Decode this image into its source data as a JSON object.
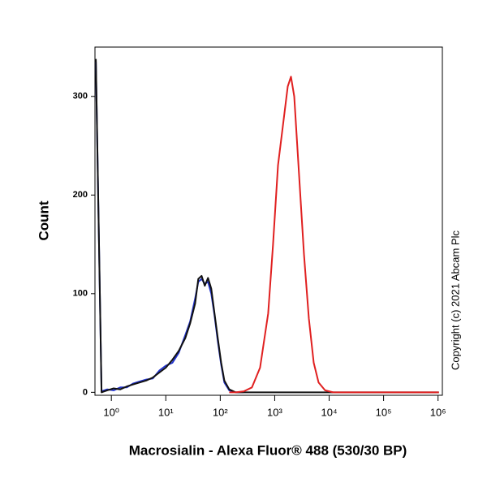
{
  "chart_data": {
    "type": "line",
    "xlabel": "Macrosialin - Alexa Fluor® 488 (530/30 BP)",
    "ylabel": "Count",
    "annotation": "Copyright (c) 2021 Abcam Plc",
    "xscale": "log",
    "xlim": [
      0.5,
      1200000
    ],
    "ylim": [
      -3,
      350
    ],
    "xticks": [
      {
        "value": 1,
        "label": "10⁰"
      },
      {
        "value": 10,
        "label": "10¹"
      },
      {
        "value": 100,
        "label": "10²"
      },
      {
        "value": 1000,
        "label": "10³"
      },
      {
        "value": 10000,
        "label": "10⁴"
      },
      {
        "value": 100000,
        "label": "10⁵"
      },
      {
        "value": 1000000,
        "label": "10⁶"
      }
    ],
    "yticks": [
      0,
      100,
      200,
      300
    ],
    "x": [
      0.52,
      0.66,
      0.84,
      1.1,
      1.46,
      1.92,
      2.53,
      3.33,
      4.38,
      5.77,
      7.6,
      10,
      13.2,
      17.3,
      22.8,
      28,
      34.5,
      39.5,
      45.4,
      52,
      59.7,
      68.5,
      78.6,
      90,
      104,
      119,
      146,
      192,
      271,
      382,
      538,
      760,
      933,
      1148,
      1410,
      1733,
      1990,
      2280,
      2805,
      3444,
      4236,
      5200,
      6394,
      8414,
      11880,
      33270,
      131500,
      1035000
    ],
    "series": [
      {
        "color": "#2233cc",
        "values": [
          335,
          1,
          3,
          2,
          5,
          5,
          9,
          11,
          13,
          14,
          22,
          27,
          30,
          40,
          58,
          72,
          95,
          112,
          115,
          110,
          112,
          100,
          78,
          52,
          28,
          10,
          2,
          0,
          0,
          null,
          null,
          null,
          null,
          null,
          null,
          null,
          null,
          null,
          null,
          null,
          null,
          null,
          null,
          null,
          null,
          null,
          null,
          null
        ]
      },
      {
        "color": "#111111",
        "values": [
          338,
          0,
          2,
          4,
          3,
          6,
          8,
          10,
          12,
          15,
          20,
          25,
          33,
          42,
          55,
          70,
          90,
          115,
          118,
          108,
          116,
          105,
          80,
          55,
          30,
          12,
          3,
          0,
          0,
          0,
          0,
          0,
          0,
          0,
          0,
          0,
          0,
          0,
          0,
          0,
          0,
          0,
          0,
          0,
          0,
          0,
          0,
          0
        ]
      },
      {
        "color": "#e02020",
        "values": [
          null,
          null,
          null,
          null,
          null,
          null,
          null,
          null,
          null,
          null,
          null,
          null,
          null,
          null,
          null,
          null,
          null,
          null,
          null,
          null,
          null,
          null,
          null,
          null,
          null,
          null,
          0,
          0,
          1,
          5,
          25,
          80,
          150,
          230,
          270,
          310,
          320,
          300,
          220,
          140,
          75,
          30,
          10,
          2,
          0,
          0,
          0,
          0
        ]
      }
    ]
  }
}
